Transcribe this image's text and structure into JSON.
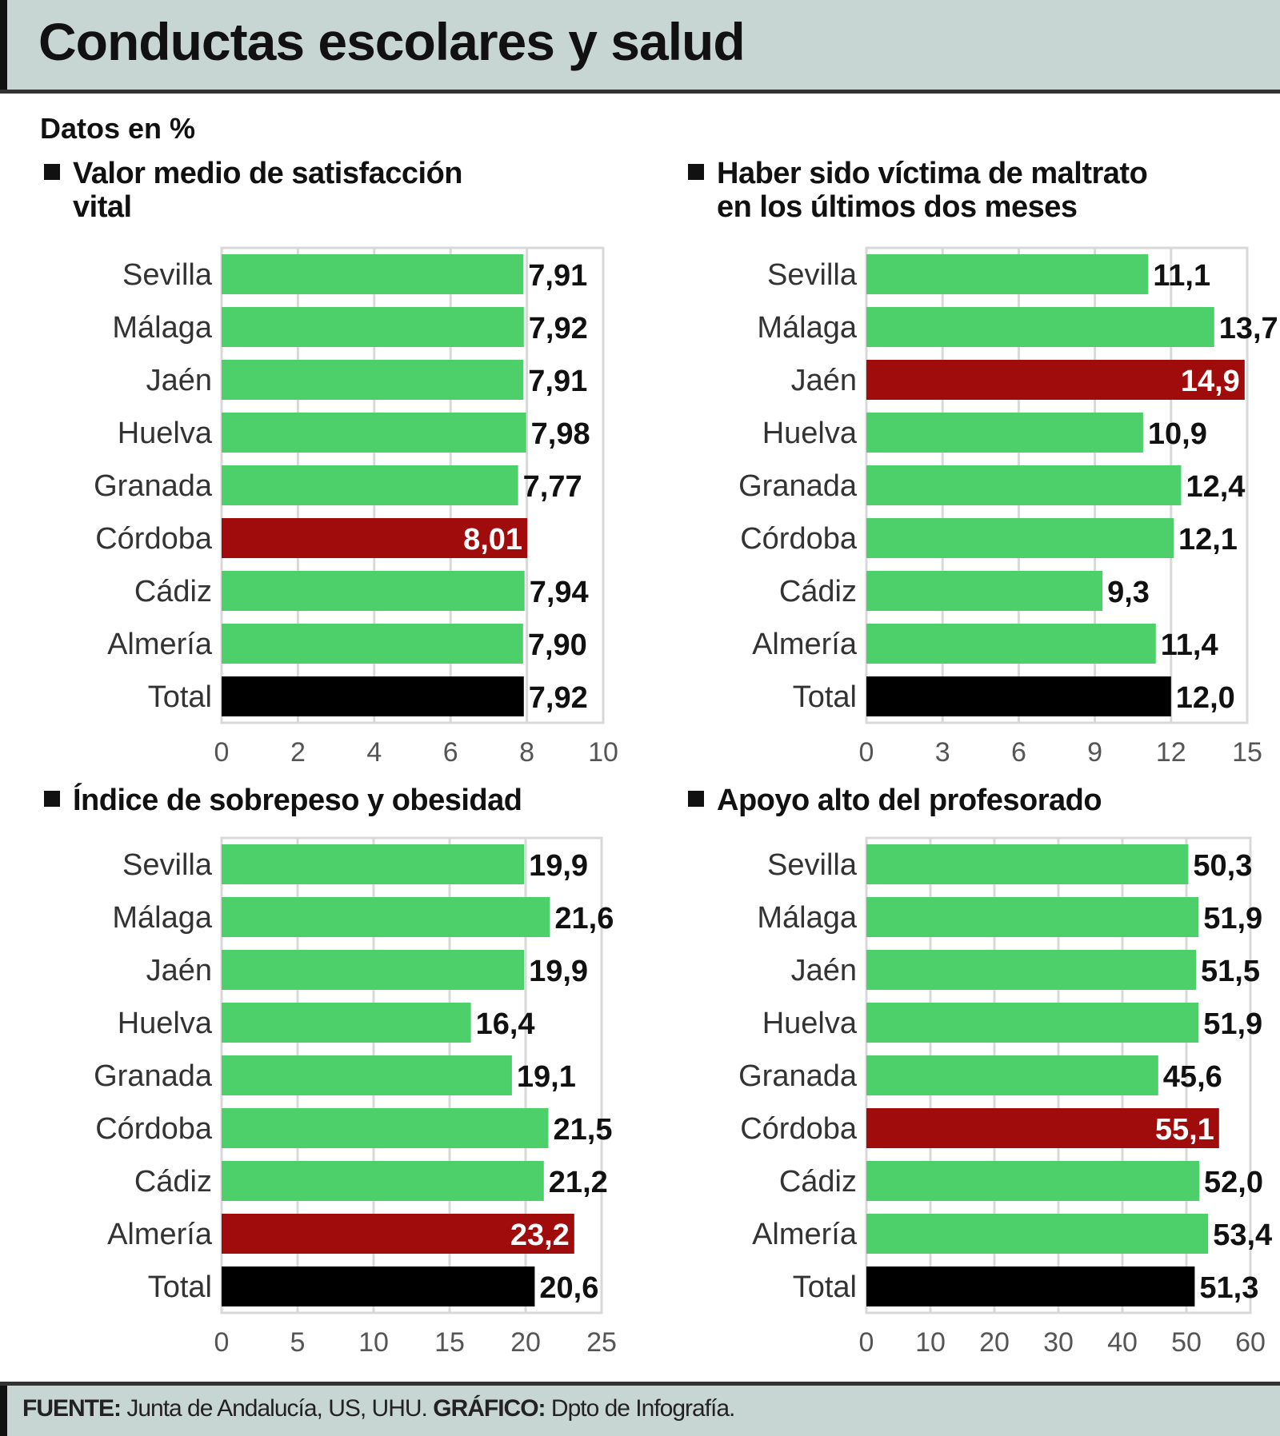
{
  "header": {
    "title": "Conductas escolares y salud",
    "subtitle": "Datos en %"
  },
  "footer": {
    "source_label": "FUENTE:",
    "source": " Junta de Andalucía, US, UHU. ",
    "graphic_label": "GRÁFICO:",
    "graphic": " Dpto de Infografía."
  },
  "colors": {
    "normal": "#4dcf6a",
    "highlight": "#a00b0b",
    "total": "#000000",
    "grid": "#d8d8d8"
  },
  "chart_data": [
    {
      "type": "bar",
      "orientation": "horizontal",
      "title_line1": "Valor medio de satisfacción",
      "title_line2": "vital",
      "categories": [
        "Sevilla",
        "Málaga",
        "Jaén",
        "Huelva",
        "Granada",
        "Córdoba",
        "Cádiz",
        "Almería",
        "Total"
      ],
      "values": [
        7.91,
        7.92,
        7.91,
        7.98,
        7.77,
        8.01,
        7.94,
        7.9,
        7.92
      ],
      "labels": [
        "7,91",
        "7,92",
        "7,91",
        "7,98",
        "7,77",
        "8,01",
        "7,94",
        "7,90",
        "7,92"
      ],
      "highlight": "Córdoba",
      "xlim": [
        0,
        10
      ],
      "ticks": [
        "0",
        "2",
        "4",
        "6",
        "8",
        "10"
      ],
      "tick_values": [
        0,
        2,
        4,
        6,
        8,
        10
      ]
    },
    {
      "type": "bar",
      "orientation": "horizontal",
      "title_line1": "Haber sido víctima de maltrato",
      "title_line2": "en los últimos dos meses",
      "categories": [
        "Sevilla",
        "Málaga",
        "Jaén",
        "Huelva",
        "Granada",
        "Córdoba",
        "Cádiz",
        "Almería",
        "Total"
      ],
      "values": [
        11.1,
        13.7,
        14.9,
        10.9,
        12.4,
        12.1,
        9.3,
        11.4,
        12.0
      ],
      "labels": [
        "11,1",
        "13,7",
        "14,9",
        "10,9",
        "12,4",
        "12,1",
        "9,3",
        "11,4",
        "12,0"
      ],
      "highlight": "Jaén",
      "xlim": [
        0,
        15
      ],
      "ticks": [
        "0",
        "3",
        "6",
        "9",
        "12",
        "15"
      ],
      "tick_values": [
        0,
        3,
        6,
        9,
        12,
        15
      ]
    },
    {
      "type": "bar",
      "orientation": "horizontal",
      "title_line1": "Índice de sobrepeso y obesidad",
      "title_line2": "",
      "categories": [
        "Sevilla",
        "Málaga",
        "Jaén",
        "Huelva",
        "Granada",
        "Córdoba",
        "Cádiz",
        "Almería",
        "Total"
      ],
      "values": [
        19.9,
        21.6,
        19.9,
        16.4,
        19.1,
        21.5,
        21.2,
        23.2,
        20.6
      ],
      "labels": [
        "19,9",
        "21,6",
        "19,9",
        "16,4",
        "19,1",
        "21,5",
        "21,2",
        "23,2",
        "20,6"
      ],
      "highlight": "Almería",
      "xlim": [
        0,
        25
      ],
      "ticks": [
        "0",
        "5",
        "10",
        "15",
        "20",
        "25"
      ],
      "tick_values": [
        0,
        5,
        10,
        15,
        20,
        25
      ]
    },
    {
      "type": "bar",
      "orientation": "horizontal",
      "title_line1": "Apoyo alto del profesorado",
      "title_line2": "",
      "categories": [
        "Sevilla",
        "Málaga",
        "Jaén",
        "Huelva",
        "Granada",
        "Córdoba",
        "Cádiz",
        "Almería",
        "Total"
      ],
      "values": [
        50.3,
        51.9,
        51.5,
        51.9,
        45.6,
        55.1,
        52.0,
        53.4,
        51.3
      ],
      "labels": [
        "50,3",
        "51,9",
        "51,5",
        "51,9",
        "45,6",
        "55,1",
        "52,0",
        "53,4",
        "51,3"
      ],
      "highlight": "Córdoba",
      "xlim": [
        0,
        60
      ],
      "ticks": [
        "0",
        "10",
        "20",
        "30",
        "40",
        "50",
        "60"
      ],
      "tick_values": [
        0,
        10,
        20,
        30,
        40,
        50,
        60
      ]
    }
  ]
}
